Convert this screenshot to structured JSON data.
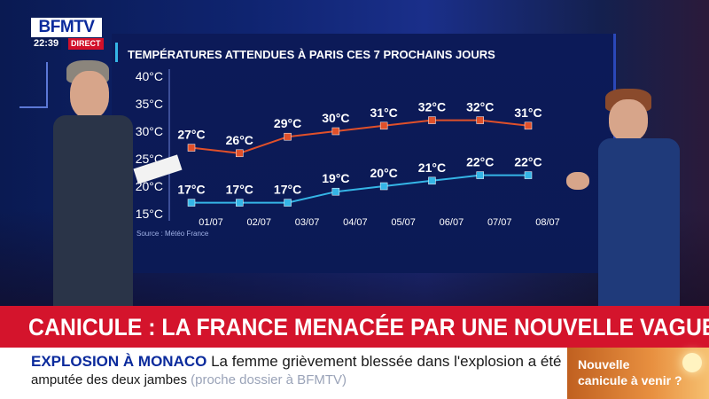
{
  "channel": {
    "name": "BFMTV",
    "time": "22:39",
    "live": "DIRECT"
  },
  "banner": {
    "headline": "CANICULE : LA FRANCE MENACÉE PAR UNE NOUVELLE VAGUE ?"
  },
  "ticker": {
    "label": "EXPLOSION À MONACO",
    "line1": "La femme grièvement blessée dans l'explosion a été",
    "line2": "amputée des deux jambes",
    "line2_note": "(proche dossier à BFMTV)"
  },
  "promo": {
    "line1": "Nouvelle",
    "line2": "canicule à venir ?"
  },
  "colors": {
    "max_series": "#e0502a",
    "min_series": "#35b5e6",
    "banner": "#d4142c",
    "brand": "#0a2a9c"
  },
  "chart_data": {
    "type": "line",
    "title": "TEMPÉRATURES ATTENDUES À PARIS CES 7 PROCHAINS JOURS",
    "source": "Source : Météo France",
    "categories": [
      "01/07",
      "02/07",
      "03/07",
      "04/07",
      "05/07",
      "06/07",
      "07/07",
      "08/07"
    ],
    "y_ticks": [
      "40°C",
      "35°C",
      "30°C",
      "25°C",
      "20°C",
      "15°C"
    ],
    "y_tick_values": [
      40,
      35,
      30,
      25,
      20,
      15
    ],
    "ylim": [
      15,
      40
    ],
    "series": [
      {
        "values": [
          27,
          26,
          29,
          30,
          31,
          32,
          32,
          31
        ],
        "labels": [
          "27°C",
          "26°C",
          "29°C",
          "30°C",
          "31°C",
          "32°C",
          "32°C",
          "31°C"
        ]
      },
      {
        "values": [
          17,
          17,
          17,
          19,
          20,
          21,
          22,
          22
        ],
        "labels": [
          "17°C",
          "17°C",
          "17°C",
          "19°C",
          "20°C",
          "21°C",
          "22°C",
          "22°C"
        ]
      }
    ]
  }
}
